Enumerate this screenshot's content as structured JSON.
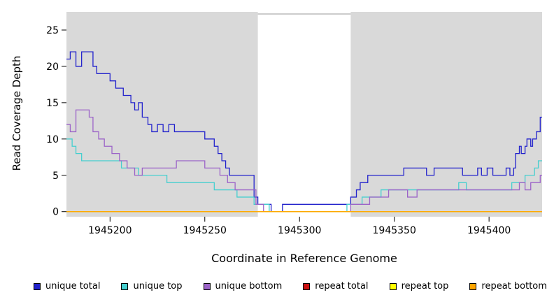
{
  "legend": {
    "items": [
      {
        "label": "unique total",
        "color": "#2222CC"
      },
      {
        "label": "unique top",
        "color": "#45CFCF"
      },
      {
        "label": "unique bottom",
        "color": "#9C64C8"
      },
      {
        "label": "repeat total",
        "color": "#CC1111"
      },
      {
        "label": "repeat top",
        "color": "#FFFF00"
      },
      {
        "label": "repeat bottom",
        "color": "#FFA500"
      }
    ]
  },
  "chart_data": {
    "type": "line",
    "step": true,
    "title": "",
    "xlabel": "Coordinate in Reference Genome",
    "ylabel": "Read Coverage Depth",
    "xlim": [
      1945177,
      1945428
    ],
    "ylim": [
      0,
      27
    ],
    "x_ticks": [
      1945200,
      1945250,
      1945300,
      1945350,
      1945400
    ],
    "y_ticks": [
      0,
      5,
      10,
      15,
      20,
      25
    ],
    "grid": false,
    "legend_position": "bottom",
    "background": "#D9D9D9",
    "highlight_region": {
      "x0": 1945278,
      "x1": 1945327,
      "color": "#FFFFFF"
    },
    "series": [
      {
        "name": "unique total",
        "color": "#2222CC",
        "points": [
          [
            1945177,
            21
          ],
          [
            1945179,
            22
          ],
          [
            1945182,
            20
          ],
          [
            1945185,
            22
          ],
          [
            1945189,
            22
          ],
          [
            1945191,
            20
          ],
          [
            1945193,
            19
          ],
          [
            1945197,
            19
          ],
          [
            1945200,
            18
          ],
          [
            1945203,
            17
          ],
          [
            1945207,
            16
          ],
          [
            1945211,
            15
          ],
          [
            1945213,
            14
          ],
          [
            1945215,
            15
          ],
          [
            1945217,
            13
          ],
          [
            1945220,
            12
          ],
          [
            1945222,
            11
          ],
          [
            1945225,
            12
          ],
          [
            1945228,
            11
          ],
          [
            1945231,
            12
          ],
          [
            1945234,
            11
          ],
          [
            1945238,
            11
          ],
          [
            1945242,
            11
          ],
          [
            1945247,
            11
          ],
          [
            1945250,
            10
          ],
          [
            1945252,
            10
          ],
          [
            1945255,
            9
          ],
          [
            1945257,
            8
          ],
          [
            1945259,
            7
          ],
          [
            1945261,
            6
          ],
          [
            1945263,
            5
          ],
          [
            1945268,
            5
          ],
          [
            1945273,
            5
          ],
          [
            1945276,
            2
          ],
          [
            1945278,
            1
          ],
          [
            1945283,
            1
          ],
          [
            1945285,
            0
          ],
          [
            1945291,
            1
          ],
          [
            1945296,
            1
          ],
          [
            1945302,
            1
          ],
          [
            1945310,
            1
          ],
          [
            1945318,
            1
          ],
          [
            1945325,
            1
          ],
          [
            1945327,
            2
          ],
          [
            1945330,
            3
          ],
          [
            1945332,
            4
          ],
          [
            1945336,
            5
          ],
          [
            1945341,
            5
          ],
          [
            1945347,
            5
          ],
          [
            1945352,
            5
          ],
          [
            1945355,
            6
          ],
          [
            1945359,
            6
          ],
          [
            1945363,
            6
          ],
          [
            1945367,
            5
          ],
          [
            1945371,
            6
          ],
          [
            1945375,
            6
          ],
          [
            1945379,
            6
          ],
          [
            1945383,
            6
          ],
          [
            1945386,
            5
          ],
          [
            1945390,
            5
          ],
          [
            1945394,
            6
          ],
          [
            1945396,
            5
          ],
          [
            1945399,
            6
          ],
          [
            1945402,
            5
          ],
          [
            1945406,
            5
          ],
          [
            1945409,
            6
          ],
          [
            1945411,
            5
          ],
          [
            1945413,
            6
          ],
          [
            1945414,
            8
          ],
          [
            1945416,
            9
          ],
          [
            1945417,
            8
          ],
          [
            1945419,
            9
          ],
          [
            1945420,
            10
          ],
          [
            1945422,
            9
          ],
          [
            1945423,
            10
          ],
          [
            1945425,
            11
          ],
          [
            1945427,
            13
          ]
        ]
      },
      {
        "name": "unique top",
        "color": "#45CFCF",
        "points": [
          [
            1945177,
            10
          ],
          [
            1945180,
            9
          ],
          [
            1945182,
            8
          ],
          [
            1945185,
            7
          ],
          [
            1945190,
            7
          ],
          [
            1945196,
            7
          ],
          [
            1945202,
            7
          ],
          [
            1945206,
            6
          ],
          [
            1945211,
            6
          ],
          [
            1945215,
            5
          ],
          [
            1945220,
            5
          ],
          [
            1945226,
            5
          ],
          [
            1945230,
            4
          ],
          [
            1945236,
            4
          ],
          [
            1945242,
            4
          ],
          [
            1945248,
            4
          ],
          [
            1945251,
            4
          ],
          [
            1945255,
            3
          ],
          [
            1945259,
            3
          ],
          [
            1945263,
            3
          ],
          [
            1945267,
            2
          ],
          [
            1945272,
            2
          ],
          [
            1945276,
            1
          ],
          [
            1945280,
            1
          ],
          [
            1945284,
            0
          ],
          [
            1945292,
            0
          ],
          [
            1945300,
            0
          ],
          [
            1945310,
            0
          ],
          [
            1945320,
            0
          ],
          [
            1945325,
            1
          ],
          [
            1945329,
            1
          ],
          [
            1945333,
            2
          ],
          [
            1945338,
            2
          ],
          [
            1945343,
            3
          ],
          [
            1945349,
            3
          ],
          [
            1945355,
            3
          ],
          [
            1945361,
            3
          ],
          [
            1945367,
            3
          ],
          [
            1945373,
            3
          ],
          [
            1945379,
            3
          ],
          [
            1945384,
            4
          ],
          [
            1945388,
            3
          ],
          [
            1945393,
            3
          ],
          [
            1945398,
            3
          ],
          [
            1945403,
            3
          ],
          [
            1945408,
            3
          ],
          [
            1945412,
            4
          ],
          [
            1945416,
            4
          ],
          [
            1945419,
            5
          ],
          [
            1945422,
            5
          ],
          [
            1945424,
            6
          ],
          [
            1945426,
            7
          ]
        ]
      },
      {
        "name": "unique bottom",
        "color": "#9C64C8",
        "points": [
          [
            1945177,
            12
          ],
          [
            1945179,
            11
          ],
          [
            1945182,
            14
          ],
          [
            1945186,
            14
          ],
          [
            1945189,
            13
          ],
          [
            1945191,
            11
          ],
          [
            1945194,
            10
          ],
          [
            1945197,
            9
          ],
          [
            1945201,
            8
          ],
          [
            1945205,
            7
          ],
          [
            1945209,
            6
          ],
          [
            1945213,
            5
          ],
          [
            1945217,
            6
          ],
          [
            1945221,
            6
          ],
          [
            1945226,
            6
          ],
          [
            1945231,
            6
          ],
          [
            1945235,
            7
          ],
          [
            1945241,
            7
          ],
          [
            1945246,
            7
          ],
          [
            1945250,
            6
          ],
          [
            1945254,
            6
          ],
          [
            1945258,
            5
          ],
          [
            1945262,
            4
          ],
          [
            1945266,
            3
          ],
          [
            1945271,
            3
          ],
          [
            1945275,
            3
          ],
          [
            1945277,
            1
          ],
          [
            1945281,
            0
          ],
          [
            1945290,
            0
          ],
          [
            1945300,
            0
          ],
          [
            1945312,
            0
          ],
          [
            1945322,
            0
          ],
          [
            1945327,
            1
          ],
          [
            1945332,
            1
          ],
          [
            1945337,
            2
          ],
          [
            1945342,
            2
          ],
          [
            1945347,
            3
          ],
          [
            1945352,
            3
          ],
          [
            1945357,
            2
          ],
          [
            1945362,
            3
          ],
          [
            1945368,
            3
          ],
          [
            1945374,
            3
          ],
          [
            1945380,
            3
          ],
          [
            1945386,
            3
          ],
          [
            1945392,
            3
          ],
          [
            1945398,
            3
          ],
          [
            1945404,
            3
          ],
          [
            1945409,
            3
          ],
          [
            1945413,
            3
          ],
          [
            1945416,
            4
          ],
          [
            1945419,
            3
          ],
          [
            1945422,
            4
          ],
          [
            1945425,
            4
          ],
          [
            1945427,
            5
          ]
        ]
      },
      {
        "name": "repeat total",
        "color": "#CC1111",
        "points": [
          [
            1945177,
            0
          ],
          [
            1945428,
            0
          ]
        ]
      },
      {
        "name": "repeat top",
        "color": "#FFFF00",
        "points": [
          [
            1945177,
            0
          ],
          [
            1945428,
            0
          ]
        ]
      },
      {
        "name": "repeat bottom",
        "color": "#FFA500",
        "points": [
          [
            1945177,
            0
          ],
          [
            1945428,
            0
          ]
        ]
      }
    ]
  }
}
